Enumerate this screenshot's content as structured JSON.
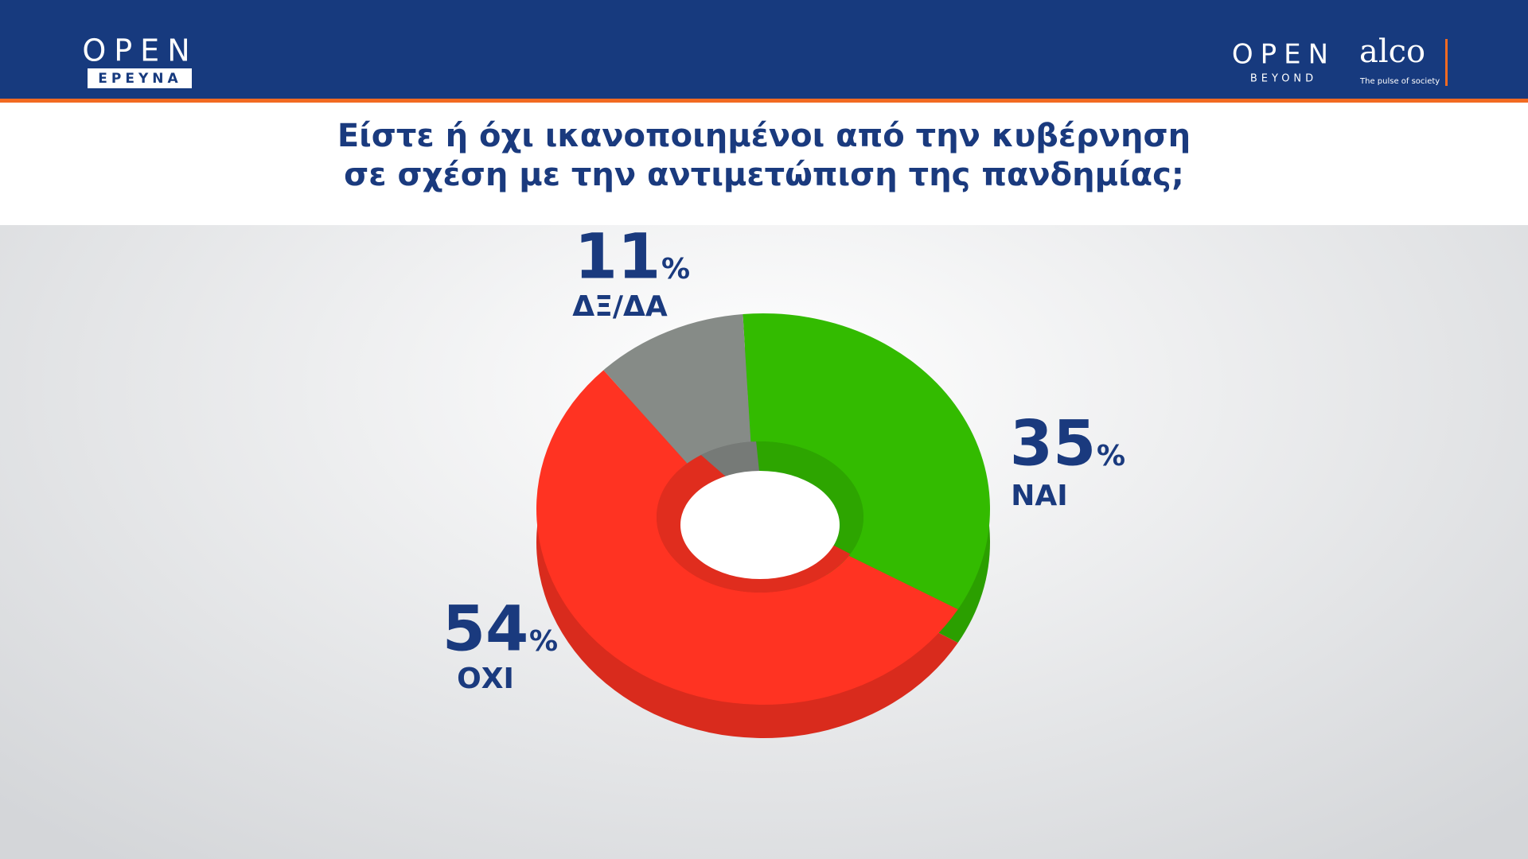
{
  "header": {
    "logo_left": "OPEN",
    "logo_left_sub": "ΕΡΕΥΝΑ",
    "logo_right": "OPEN",
    "logo_right_sub": "BEYOND",
    "partner": "alco",
    "partner_tagline": "The pulse of society"
  },
  "chart_data": {
    "type": "donut",
    "title": [
      "Είστε ή όχι ικανοποιημένοι από την κυβέρνηση",
      "σε σχέση με την αντιμετώπιση της πανδημίας;"
    ],
    "categories": [
      "ΝΑΙ",
      "ΟΧΙ",
      "ΔΞ/ΔΑ"
    ],
    "values": [
      35,
      54,
      11
    ],
    "colors": [
      "#33bb00",
      "#ff3322",
      "#868b87"
    ],
    "unit": "%"
  }
}
